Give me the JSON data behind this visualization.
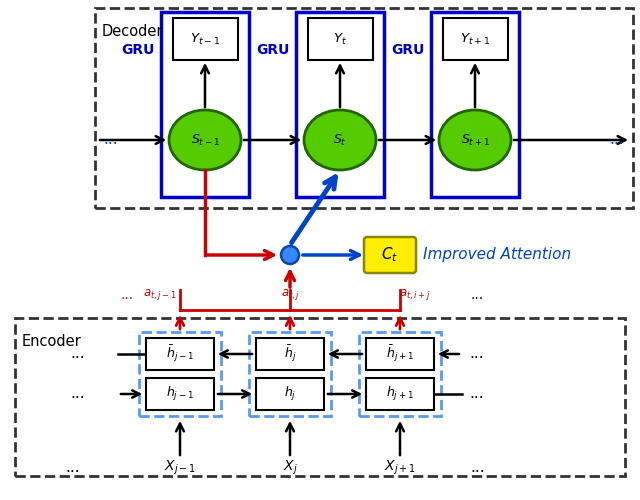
{
  "bg_color": "#ffffff",
  "dashed_border_color": "#333333",
  "blue_solid_color": "#0000cc",
  "light_blue_dashed": "#5599ff",
  "green_fill": "#55cc00",
  "green_edge": "#226600",
  "red_color": "#cc0000",
  "blue_color": "#0044cc",
  "yellow_fill": "#ffee00",
  "blue_dot_fill": "#3388ff",
  "decoder_label": "Decoder",
  "encoder_label": "Encoder",
  "improved_attention_label": "Improved Attention",
  "gru_label": "GRU",
  "s_labels": [
    "S_{t-1}",
    "S_t",
    "S_{t+1}"
  ],
  "y_labels": [
    "Y_{t-1}",
    "Y_t",
    "Y_{t+1}"
  ],
  "x_labels": [
    "X_{j-1}",
    "X_j",
    "X_{j+1}"
  ],
  "a_labels": [
    "a_{t,j-1}",
    "a_{t,j}",
    "a_{t,i+j}"
  ],
  "h_top_labels": [
    "\\bar{h}_{j-1}",
    "\\bar{h}_j",
    "\\bar{h}_{j+1}"
  ],
  "h_bot_labels": [
    "h_{j-1}",
    "h_j",
    "h_{j+1}"
  ]
}
